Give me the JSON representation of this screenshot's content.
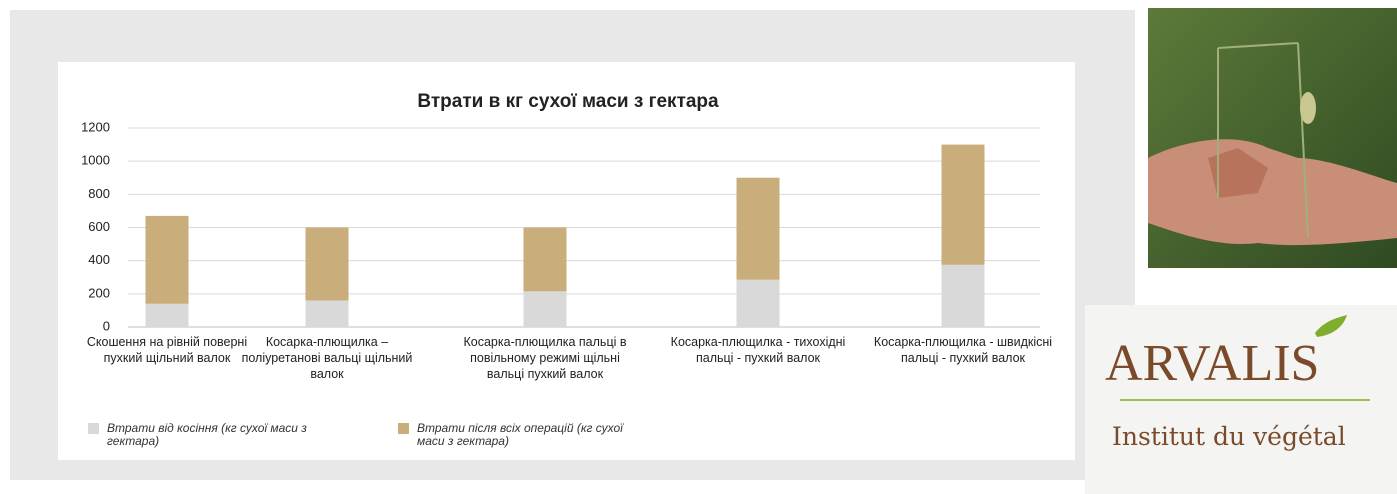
{
  "chart_data": {
    "type": "stacked-bar",
    "title": "Втрати в кг сухої маси з гектара",
    "categories": [
      "Скошення на рівній поверні пухкий щільний валок",
      "Косарка-плющилка – поліуретанові вальці щільний валок",
      "Косарка-плющилка пальці в повільному режимі щільні вальці пухкий валок",
      "Косарка-плющилка - тихохідні пальці - пухкий валок",
      "Косарка-плющилка - швидкісні пальці - пухкий валок"
    ],
    "series": [
      {
        "name": "Втрати від косіння (кг сухої маси з гектара)",
        "color": "#d9d9d9",
        "values": [
          140,
          160,
          215,
          285,
          375
        ]
      },
      {
        "name": "Втрати після всіх операцій (кг сухої маси з гектара)",
        "color": "#c9ae7c",
        "values": [
          530,
          440,
          385,
          615,
          725
        ]
      }
    ],
    "ylim": [
      0,
      1200
    ],
    "yticks": [
      0,
      200,
      400,
      600,
      800,
      1000,
      1200
    ],
    "grid": true,
    "legend": "bottom"
  },
  "logo": {
    "name": "ARVALIS",
    "tagline": "Institut du végétal"
  }
}
